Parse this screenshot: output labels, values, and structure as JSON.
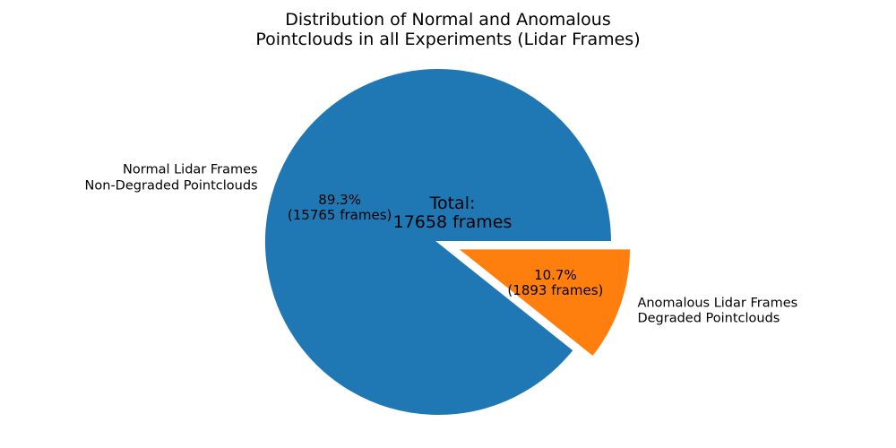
{
  "chart_data": {
    "type": "pie",
    "title": "Distribution of Normal and Anomalous\nPointclouds in all Experiments (Lidar Frames)",
    "total_frames": 17658,
    "center_text": "Total:\n17658 frames",
    "start_angle_deg": 0,
    "direction": "counterclockwise",
    "legend": "none",
    "background_color": "#ffffff",
    "edge_color": "#ffffff",
    "slices": [
      {
        "label": "Normal Lidar Frames\nNon-Degraded Pointclouds",
        "value": 15765,
        "percent": 89.3,
        "pct_label": "89.3%\n(15765 frames)",
        "color": "#1f77b4",
        "explode": 0
      },
      {
        "label": "Anomalous Lidar Frames\nDegraded Pointclouds",
        "value": 1893,
        "percent": 10.7,
        "pct_label": "10.7%\n(1893 frames)",
        "color": "#ff7f0e",
        "explode": 0.115
      }
    ]
  }
}
